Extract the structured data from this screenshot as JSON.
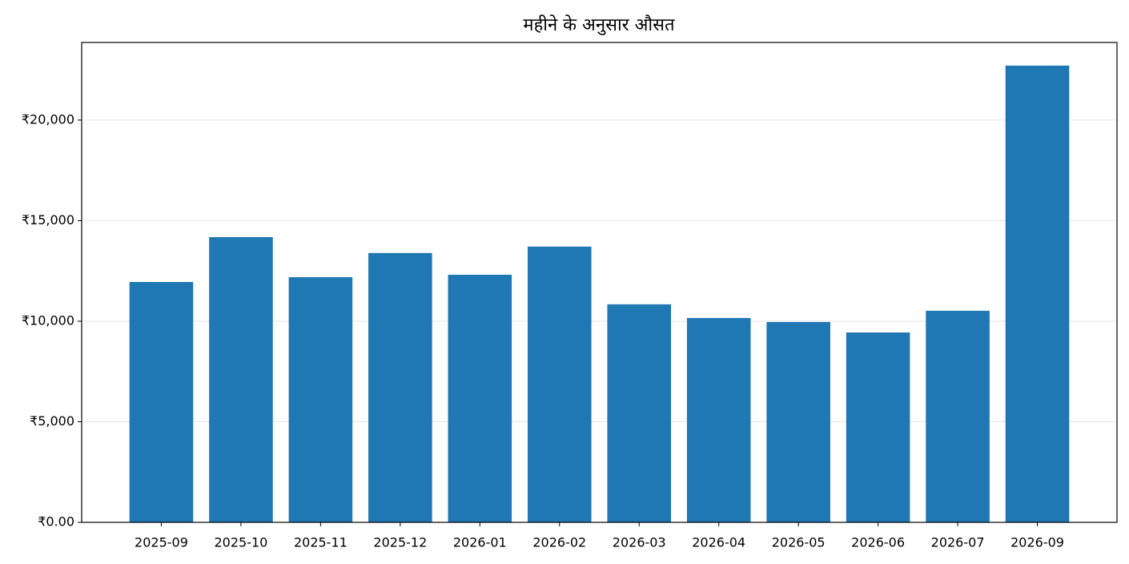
{
  "chart_data": {
    "type": "bar",
    "title": "महीने के अनुसार औसत",
    "categories": [
      "2025-09",
      "2025-10",
      "2025-11",
      "2025-12",
      "2026-01",
      "2026-02",
      "2026-03",
      "2026-04",
      "2026-05",
      "2026-06",
      "2026-07",
      "2026-09"
    ],
    "values": [
      11950,
      14180,
      12190,
      13390,
      12310,
      13710,
      10840,
      10160,
      9960,
      9440,
      10520,
      22710
    ],
    "color": "#1f77b4",
    "ylim": [
      0,
      23860
    ],
    "yticks": [
      {
        "value": 0,
        "label": "₹0.00"
      },
      {
        "value": 5000,
        "label": "₹5,000"
      },
      {
        "value": 10000,
        "label": "₹10,000"
      },
      {
        "value": 15000,
        "label": "₹15,000"
      },
      {
        "value": 20000,
        "label": "₹20,000"
      }
    ],
    "grid": true
  }
}
